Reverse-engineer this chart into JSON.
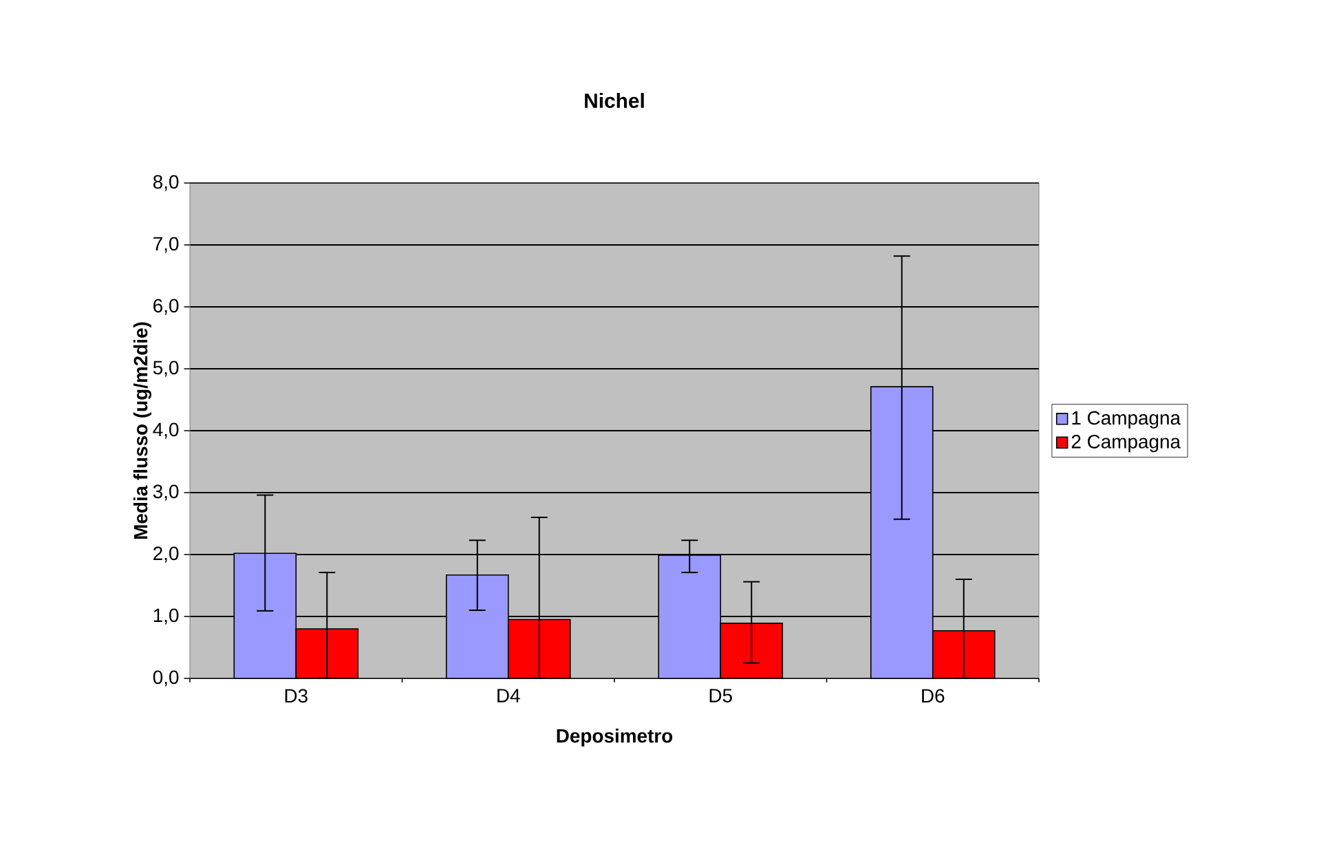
{
  "chart_data": {
    "type": "bar",
    "title": "Nichel",
    "xlabel": "Deposimetro",
    "ylabel": "Media flusso (ug/m2die)",
    "categories": [
      "D3",
      "D4",
      "D5",
      "D6"
    ],
    "series": [
      {
        "name": "1 Campagna",
        "color": "#9999ff",
        "values": [
          2.02,
          1.67,
          1.99,
          4.71
        ],
        "errors": [
          [
            1.09,
            2.96
          ],
          [
            1.1,
            2.23
          ],
          [
            1.71,
            2.23
          ],
          [
            2.57,
            6.82
          ]
        ]
      },
      {
        "name": "2 Campagna",
        "color": "#ff0000",
        "values": [
          0.8,
          0.95,
          0.89,
          0.77
        ],
        "errors": [
          [
            0.0,
            1.71
          ],
          [
            0.0,
            2.6
          ],
          [
            0.25,
            1.56
          ],
          [
            0.0,
            1.6
          ]
        ]
      }
    ],
    "ylim": [
      0,
      8
    ],
    "yticks": [
      {
        "value": 0,
        "label": "0,0"
      },
      {
        "value": 1,
        "label": "1,0"
      },
      {
        "value": 2,
        "label": "2,0"
      },
      {
        "value": 3,
        "label": "3,0"
      },
      {
        "value": 4,
        "label": "4,0"
      },
      {
        "value": 5,
        "label": "5,0"
      },
      {
        "value": 6,
        "label": "6,0"
      },
      {
        "value": 7,
        "label": "7,0"
      },
      {
        "value": 8,
        "label": "8,0"
      }
    ],
    "grid": "y",
    "legend": "right"
  }
}
